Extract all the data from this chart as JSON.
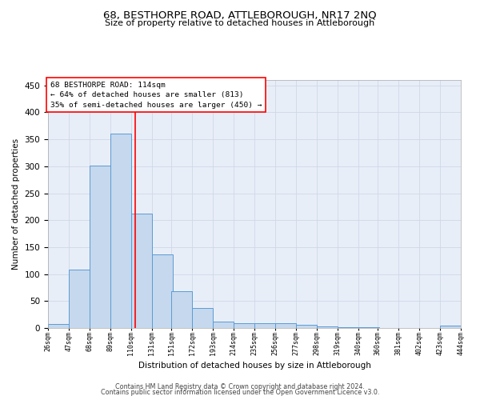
{
  "title": "68, BESTHORPE ROAD, ATTLEBOROUGH, NR17 2NQ",
  "subtitle": "Size of property relative to detached houses in Attleborough",
  "xlabel": "Distribution of detached houses by size in Attleborough",
  "ylabel": "Number of detached properties",
  "footnote1": "Contains HM Land Registry data © Crown copyright and database right 2024.",
  "footnote2": "Contains public sector information licensed under the Open Government Licence v3.0.",
  "annotation_title": "68 BESTHORPE ROAD: 114sqm",
  "annotation_line1": "← 64% of detached houses are smaller (813)",
  "annotation_line2": "35% of semi-detached houses are larger (450) →",
  "bins": [
    26,
    47,
    68,
    89,
    110,
    131,
    151,
    172,
    193,
    214,
    235,
    256,
    277,
    298,
    319,
    340,
    360,
    381,
    402,
    423,
    444
  ],
  "values": [
    8,
    108,
    301,
    360,
    212,
    137,
    69,
    37,
    12,
    9,
    9,
    9,
    6,
    3,
    1,
    1,
    0,
    0,
    0,
    4
  ],
  "marker_value": 114,
  "bar_color": "#c5d8ed",
  "bar_edge_color": "#5b9bd5",
  "marker_color": "red",
  "grid_color": "#d0d8e8",
  "background_color": "#e8eef8",
  "annotation_box_color": "white",
  "annotation_box_edge": "red",
  "ylim": [
    0,
    460
  ],
  "yticks": [
    0,
    50,
    100,
    150,
    200,
    250,
    300,
    350,
    400,
    450
  ],
  "title_fontsize": 9.5,
  "subtitle_fontsize": 8.0,
  "ylabel_fontsize": 7.5,
  "xlabel_fontsize": 7.5,
  "ytick_fontsize": 7.5,
  "xtick_fontsize": 6.0
}
